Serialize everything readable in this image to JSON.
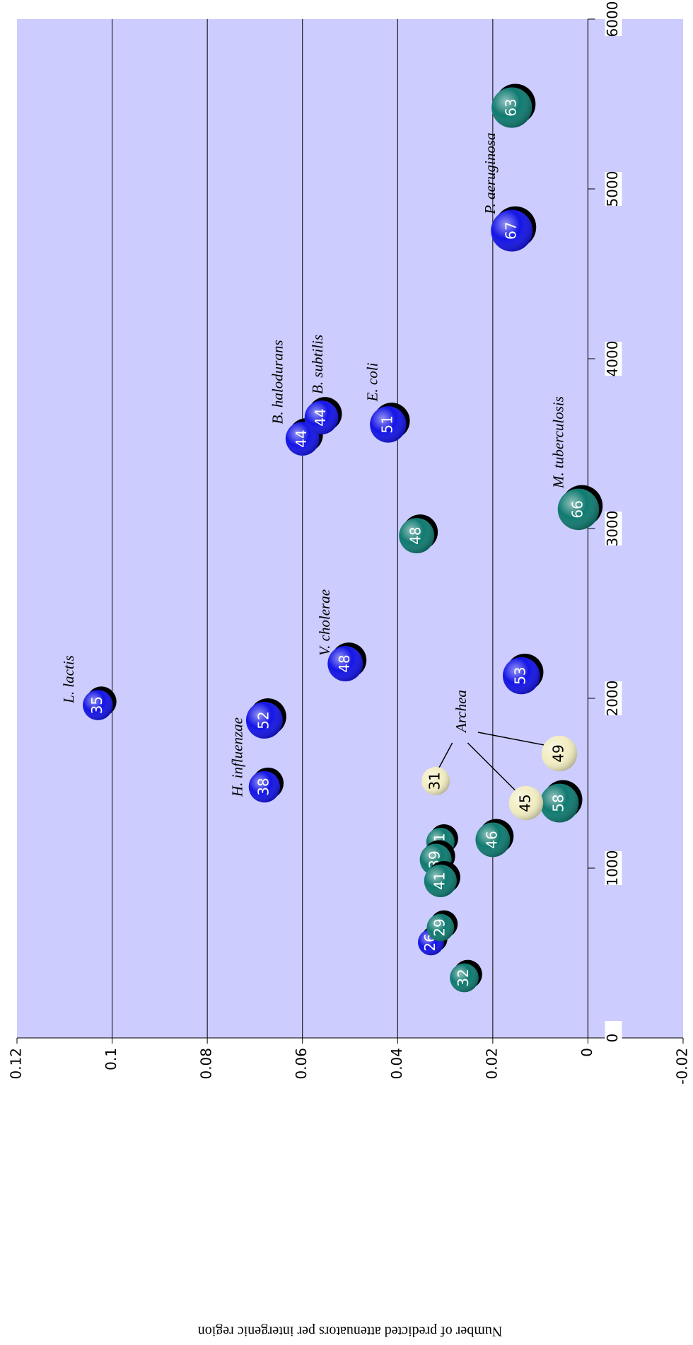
{
  "chart_data": {
    "type": "bubble",
    "ylabel": "Number of predicted attenuators per intergenic region",
    "xlim": [
      0,
      6000
    ],
    "xticks": [
      0,
      1000,
      2000,
      3000,
      4000,
      5000,
      6000
    ],
    "ylim": [
      -0.02,
      0.12
    ],
    "yticks": [
      -0.02,
      0,
      0.02,
      0.04,
      0.06,
      0.08,
      0.1,
      0.12
    ],
    "grid": true,
    "background": "#ccccff",
    "series": [
      {
        "color": "#1414e6",
        "x": [
          1960,
          1871,
          1479,
          2204,
          2133,
          3529,
          3654,
          3613,
          4754,
          563
        ],
        "values": [
          0.103,
          0.068,
          0.068,
          0.051,
          0.014,
          0.06,
          0.056,
          0.042,
          0.016,
          0.033
        ],
        "sizes": [
          35,
          52,
          38,
          48,
          53,
          44,
          44,
          51,
          67,
          26
        ]
      },
      {
        "color": "#0f7a70",
        "x": [
          2958,
          3113,
          5479,
          1383,
          1167,
          1154,
          1050,
          925,
          650,
          354
        ],
        "values": [
          0.036,
          0.002,
          0.016,
          0.006,
          0.02,
          0.031,
          0.032,
          0.031,
          0.031,
          0.026
        ],
        "sizes": [
          48,
          66,
          63,
          58,
          46,
          31,
          39,
          41,
          29,
          32
        ]
      },
      {
        "color": "#f2edc2",
        "x": [
          1513,
          1675,
          1383
        ],
        "values": [
          0.032,
          0.006,
          0.013
        ],
        "sizes": [
          31,
          49,
          45
        ]
      }
    ],
    "annotations": [
      "L. lactis",
      "H. influenzae",
      "V. cholerae",
      "B. halodurans",
      "B. subtilis",
      "E. coli",
      "M. tuberculosis",
      "P. aeruginosa",
      "Archea"
    ]
  }
}
